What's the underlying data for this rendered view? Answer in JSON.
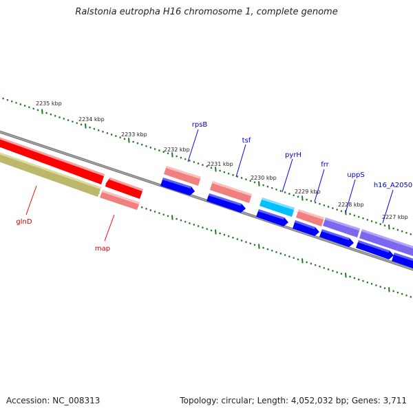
{
  "title": "Ralstonia eutropha H16 chromosome 1, complete genome",
  "footer": {
    "accession": "Accession: NC_008313",
    "stats": "Topology: circular; Length: 4,052,032 bp; Genes: 3,711"
  },
  "colors": {
    "backbone": "#808080",
    "tick": "#1f7a1f",
    "forward_label": "#0000cc",
    "reverse_label": "#cc0000"
  },
  "kbp_markers": [
    {
      "label": "2235 kbp"
    },
    {
      "label": "2234 kbp"
    },
    {
      "label": "2233 kbp"
    },
    {
      "label": "2232 kbp"
    },
    {
      "label": "2231 kbp"
    },
    {
      "label": "2230 kbp"
    },
    {
      "label": "2229 kbp"
    },
    {
      "label": "2228 kbp"
    },
    {
      "label": "2227 kbp"
    }
  ],
  "genes": [
    {
      "name": "glnD",
      "strand": "reverse",
      "color": "#ff0000"
    },
    {
      "name": "map",
      "strand": "reverse",
      "color": "#ff0000"
    },
    {
      "name": "rpsB",
      "strand": "forward",
      "color": "#f08080"
    },
    {
      "name": "tsf",
      "strand": "forward",
      "color": "#f08080"
    },
    {
      "name": "pyrH",
      "strand": "forward",
      "color": "#00bfff"
    },
    {
      "name": "frr",
      "strand": "forward",
      "color": "#f08080"
    },
    {
      "name": "uppS",
      "strand": "forward",
      "color": "#7b68ee"
    },
    {
      "name": "h16_A2050",
      "strand": "forward",
      "color": "#7b68ee"
    }
  ]
}
